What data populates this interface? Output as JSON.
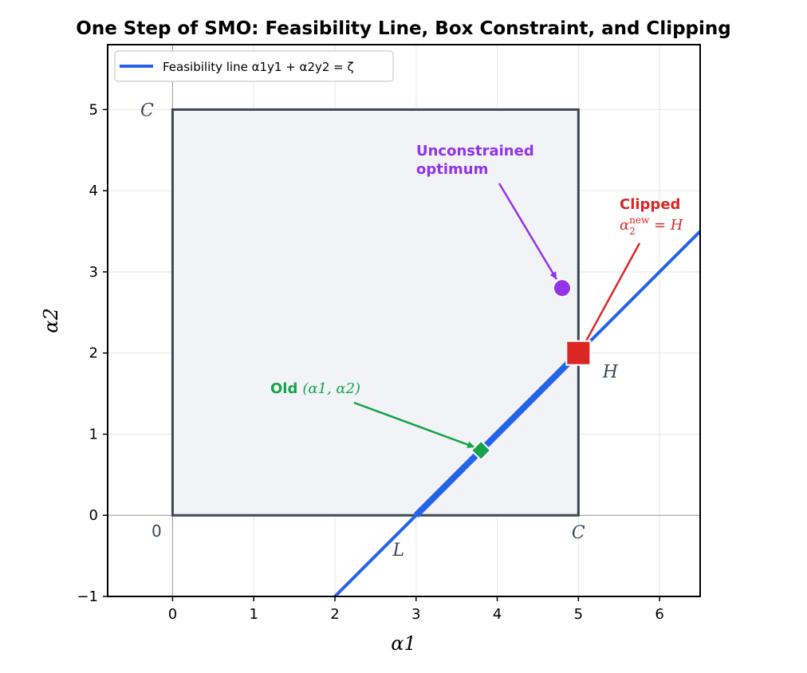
{
  "chart_data": {
    "type": "line",
    "title": "One Step of SMO: Feasibility Line, Box Constraint, and Clipping",
    "xlabel": "α1",
    "ylabel": "α2",
    "xlim": [
      -0.8,
      6.5
    ],
    "ylim": [
      -1,
      5.8
    ],
    "xticks": [
      0,
      1,
      2,
      3,
      4,
      5,
      6
    ],
    "yticks": [
      -1,
      0,
      1,
      2,
      3,
      4,
      5
    ],
    "grid": true,
    "legend": {
      "position": "top-left",
      "entries": [
        "Feasibility line α1y1 + α2y2 = ζ"
      ]
    },
    "box": {
      "C": 5,
      "corner_labels": {
        "top_left": "C",
        "origin": "0",
        "right_bottom": "C"
      }
    },
    "series": [
      {
        "name": "Feasibility line α1y1 + α2y2 = ζ",
        "x": [
          2,
          6.5
        ],
        "y": [
          -1,
          3.5
        ],
        "color": "#2563eb"
      }
    ],
    "segment_in_box": {
      "x": [
        3,
        5
      ],
      "y": [
        0,
        2
      ],
      "color": "#2563eb"
    },
    "points": [
      {
        "role": "old",
        "x": 3.8,
        "y": 0.8,
        "color": "#16a34a",
        "marker": "diamond"
      },
      {
        "role": "unconstrained",
        "x": 4.8,
        "y": 2.8,
        "color": "#9333ea",
        "marker": "circle"
      },
      {
        "role": "clipped",
        "x": 5,
        "y": 2,
        "color": "#dc2626",
        "marker": "square"
      }
    ],
    "bound_labels": {
      "L": "L",
      "H": "H"
    },
    "annotations": {
      "unconstrained": {
        "line1": "Unconstrained",
        "line2": "optimum",
        "color": "#9333ea"
      },
      "clipped": {
        "line1": "Clipped",
        "math_base": "α",
        "math_sub": "2",
        "math_sup": "new",
        "math_rest": " = H",
        "color": "#dc2626"
      },
      "old": {
        "bold": "Old",
        "math": "(α1, α2)",
        "color": "#16a34a"
      }
    }
  }
}
